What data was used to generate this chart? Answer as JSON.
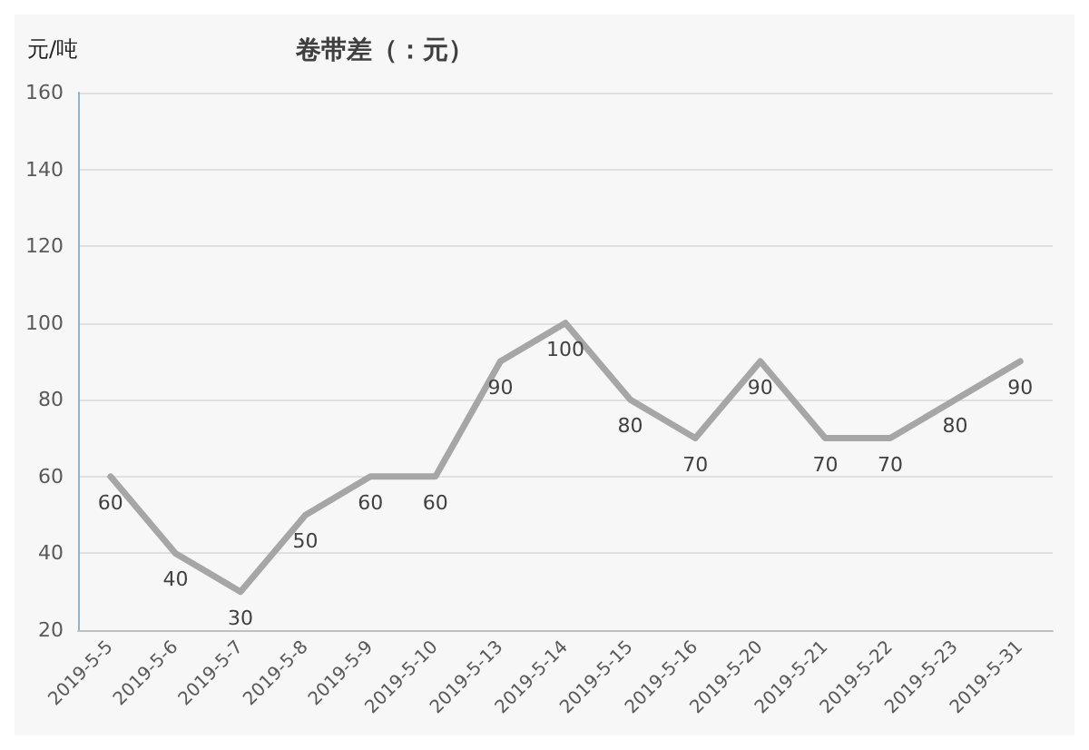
{
  "chart_data": {
    "type": "line",
    "title": "卷带差（：元）",
    "ylabel": "元/吨",
    "categories": [
      "2019-5-5",
      "2019-5-6",
      "2019-5-7",
      "2019-5-8",
      "2019-5-9",
      "2019-5-10",
      "2019-5-13",
      "2019-5-14",
      "2019-5-15",
      "2019-5-16",
      "2019-5-20",
      "2019-5-21",
      "2019-5-22",
      "2019-5-23",
      "2019-5-31"
    ],
    "series": [
      {
        "color": "#a6a6a6",
        "values": [
          60,
          40,
          30,
          50,
          60,
          60,
          90,
          100,
          80,
          70,
          90,
          70,
          70,
          80,
          90
        ]
      }
    ],
    "ylim": [
      20,
      160
    ],
    "yticks": [
      20,
      40,
      60,
      80,
      100,
      120,
      140,
      160
    ],
    "grid": "y",
    "data_labels": true,
    "marker": "none",
    "line_style": "solid"
  }
}
